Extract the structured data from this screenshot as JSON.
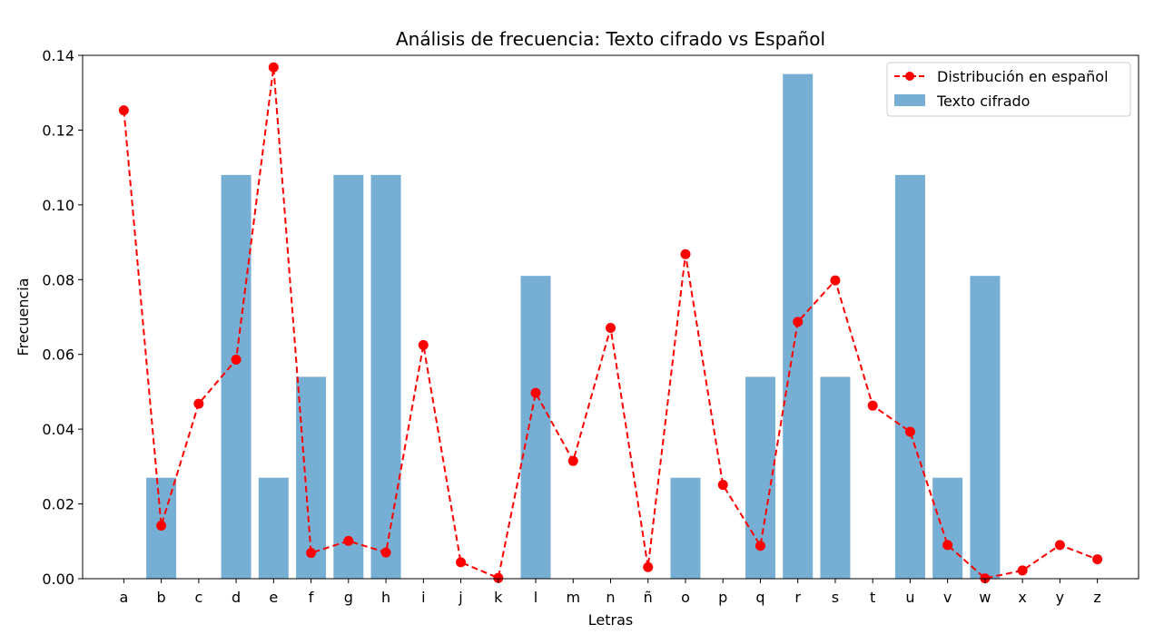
{
  "chart_data": {
    "type": "bar",
    "title": "Análisis de frecuencia: Texto cifrado vs Español",
    "xlabel": "Letras",
    "ylabel": "Frecuencia",
    "ylim": [
      0,
      0.14
    ],
    "yticks": [
      "0.00",
      "0.02",
      "0.04",
      "0.06",
      "0.08",
      "0.10",
      "0.12",
      "0.14"
    ],
    "ytick_values": [
      0,
      0.02,
      0.04,
      0.06,
      0.08,
      0.1,
      0.12,
      0.14
    ],
    "categories": [
      "a",
      "b",
      "c",
      "d",
      "e",
      "f",
      "g",
      "h",
      "i",
      "j",
      "k",
      "l",
      "m",
      "n",
      "ñ",
      "o",
      "p",
      "q",
      "r",
      "s",
      "t",
      "u",
      "v",
      "w",
      "x",
      "y",
      "z"
    ],
    "series": [
      {
        "name": "Texto cifrado",
        "kind": "bar",
        "color": "#77aed3",
        "values": [
          0,
          0.027,
          0,
          0.108,
          0.027,
          0.054,
          0.108,
          0.108,
          0,
          0,
          0,
          0.081,
          0,
          0,
          0,
          0.027,
          0,
          0.054,
          0.135,
          0.054,
          0,
          0.108,
          0.027,
          0.081,
          0,
          0,
          0
        ]
      },
      {
        "name": "Distribución en español",
        "kind": "line",
        "color": "#ff0000",
        "style": "dashed-with-circle-markers",
        "values": [
          0.1253,
          0.0142,
          0.0468,
          0.0586,
          0.1368,
          0.0069,
          0.0101,
          0.007,
          0.0625,
          0.0044,
          0.0002,
          0.0497,
          0.0315,
          0.0671,
          0.0031,
          0.0868,
          0.0251,
          0.0088,
          0.0687,
          0.0798,
          0.0463,
          0.0393,
          0.009,
          0.0001,
          0.0022,
          0.009,
          0.0052
        ]
      }
    ],
    "legend_position": "top-right",
    "grid": false
  }
}
